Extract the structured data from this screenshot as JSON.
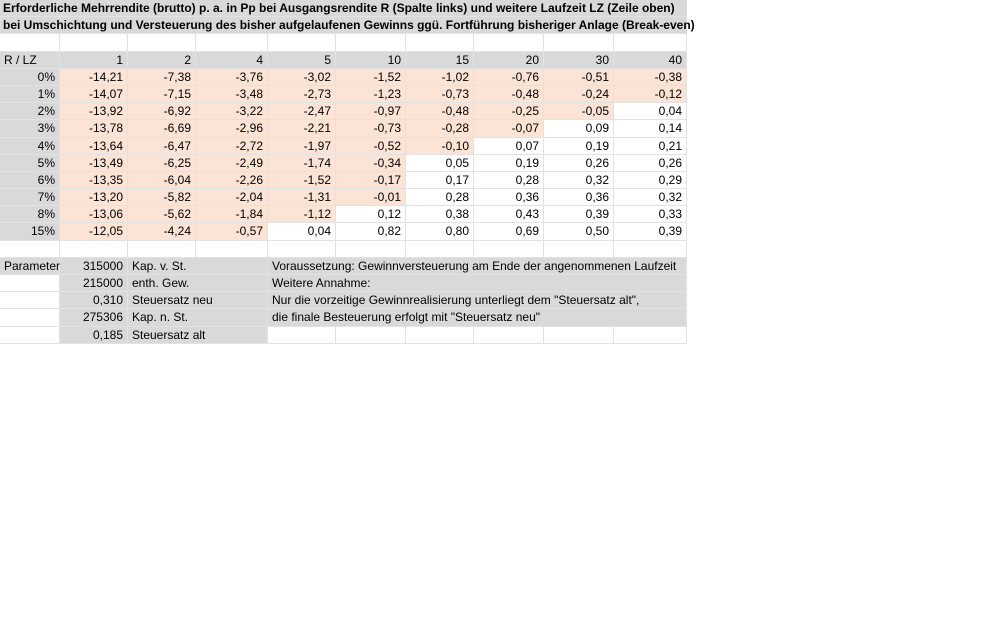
{
  "title_line1": "Erforderliche Mehrrendite (brutto) p. a. in Pp bei Ausgangsrendite R (Spalte links) und weitere Laufzeit LZ (Zeile oben)",
  "title_line2": "bei Umschichtung und Versteuerung des bisher aufgelaufenen Gewinns ggü. Fortführung bisheriger Anlage (Break-even)",
  "corner_label": "R / LZ",
  "lz_headers": [
    "1",
    "2",
    "4",
    "5",
    "10",
    "15",
    "20",
    "30",
    "40"
  ],
  "rows": [
    {
      "r": "0%",
      "values": [
        "-14,21",
        "-7,38",
        "-3,76",
        "-3,02",
        "-1,52",
        "-1,02",
        "-0,76",
        "-0,51",
        "-0,38"
      ]
    },
    {
      "r": "1%",
      "values": [
        "-14,07",
        "-7,15",
        "-3,48",
        "-2,73",
        "-1,23",
        "-0,73",
        "-0,48",
        "-0,24",
        "-0,12"
      ]
    },
    {
      "r": "2%",
      "values": [
        "-13,92",
        "-6,92",
        "-3,22",
        "-2,47",
        "-0,97",
        "-0,48",
        "-0,25",
        "-0,05",
        "0,04"
      ]
    },
    {
      "r": "3%",
      "values": [
        "-13,78",
        "-6,69",
        "-2,96",
        "-2,21",
        "-0,73",
        "-0,28",
        "-0,07",
        "0,09",
        "0,14"
      ]
    },
    {
      "r": "4%",
      "values": [
        "-13,64",
        "-6,47",
        "-2,72",
        "-1,97",
        "-0,52",
        "-0,10",
        "0,07",
        "0,19",
        "0,21"
      ]
    },
    {
      "r": "5%",
      "values": [
        "-13,49",
        "-6,25",
        "-2,49",
        "-1,74",
        "-0,34",
        "0,05",
        "0,19",
        "0,26",
        "0,26"
      ]
    },
    {
      "r": "6%",
      "values": [
        "-13,35",
        "-6,04",
        "-2,26",
        "-1,52",
        "-0,17",
        "0,17",
        "0,28",
        "0,32",
        "0,29"
      ]
    },
    {
      "r": "7%",
      "values": [
        "-13,20",
        "-5,82",
        "-2,04",
        "-1,31",
        "-0,01",
        "0,28",
        "0,36",
        "0,36",
        "0,32"
      ]
    },
    {
      "r": "8%",
      "values": [
        "-13,06",
        "-5,62",
        "-1,84",
        "-1,12",
        "0,12",
        "0,38",
        "0,43",
        "0,39",
        "0,33"
      ]
    },
    {
      "r": "15%",
      "values": [
        "-12,05",
        "-4,24",
        "-0,57",
        "0,04",
        "0,82",
        "0,80",
        "0,69",
        "0,50",
        "0,39"
      ]
    }
  ],
  "colors": {
    "negative_fill": "#fbe4d5",
    "header_fill": "#d9d9d9",
    "positive_fill": "#ffffff"
  },
  "params": {
    "label": "Parameter",
    "items": [
      {
        "value": "315000",
        "name": "Kap. v. St."
      },
      {
        "value": "215000",
        "name": "enth. Gew."
      },
      {
        "value": "0,310",
        "name": "Steuersatz neu"
      },
      {
        "value": "275306",
        "name": "Kap. n. St."
      },
      {
        "value": "0,185",
        "name": "Steuersatz alt"
      }
    ]
  },
  "notes": [
    "Voraussetzung: Gewinnversteuerung am Ende der angenommenen Laufzeit",
    "Weitere Annahme:",
    "Nur die vorzeitige Gewinnrealisierung unterliegt dem \"Steuersatz alt\",",
    "die finale Besteuerung erfolgt mit \"Steuersatz neu\""
  ]
}
